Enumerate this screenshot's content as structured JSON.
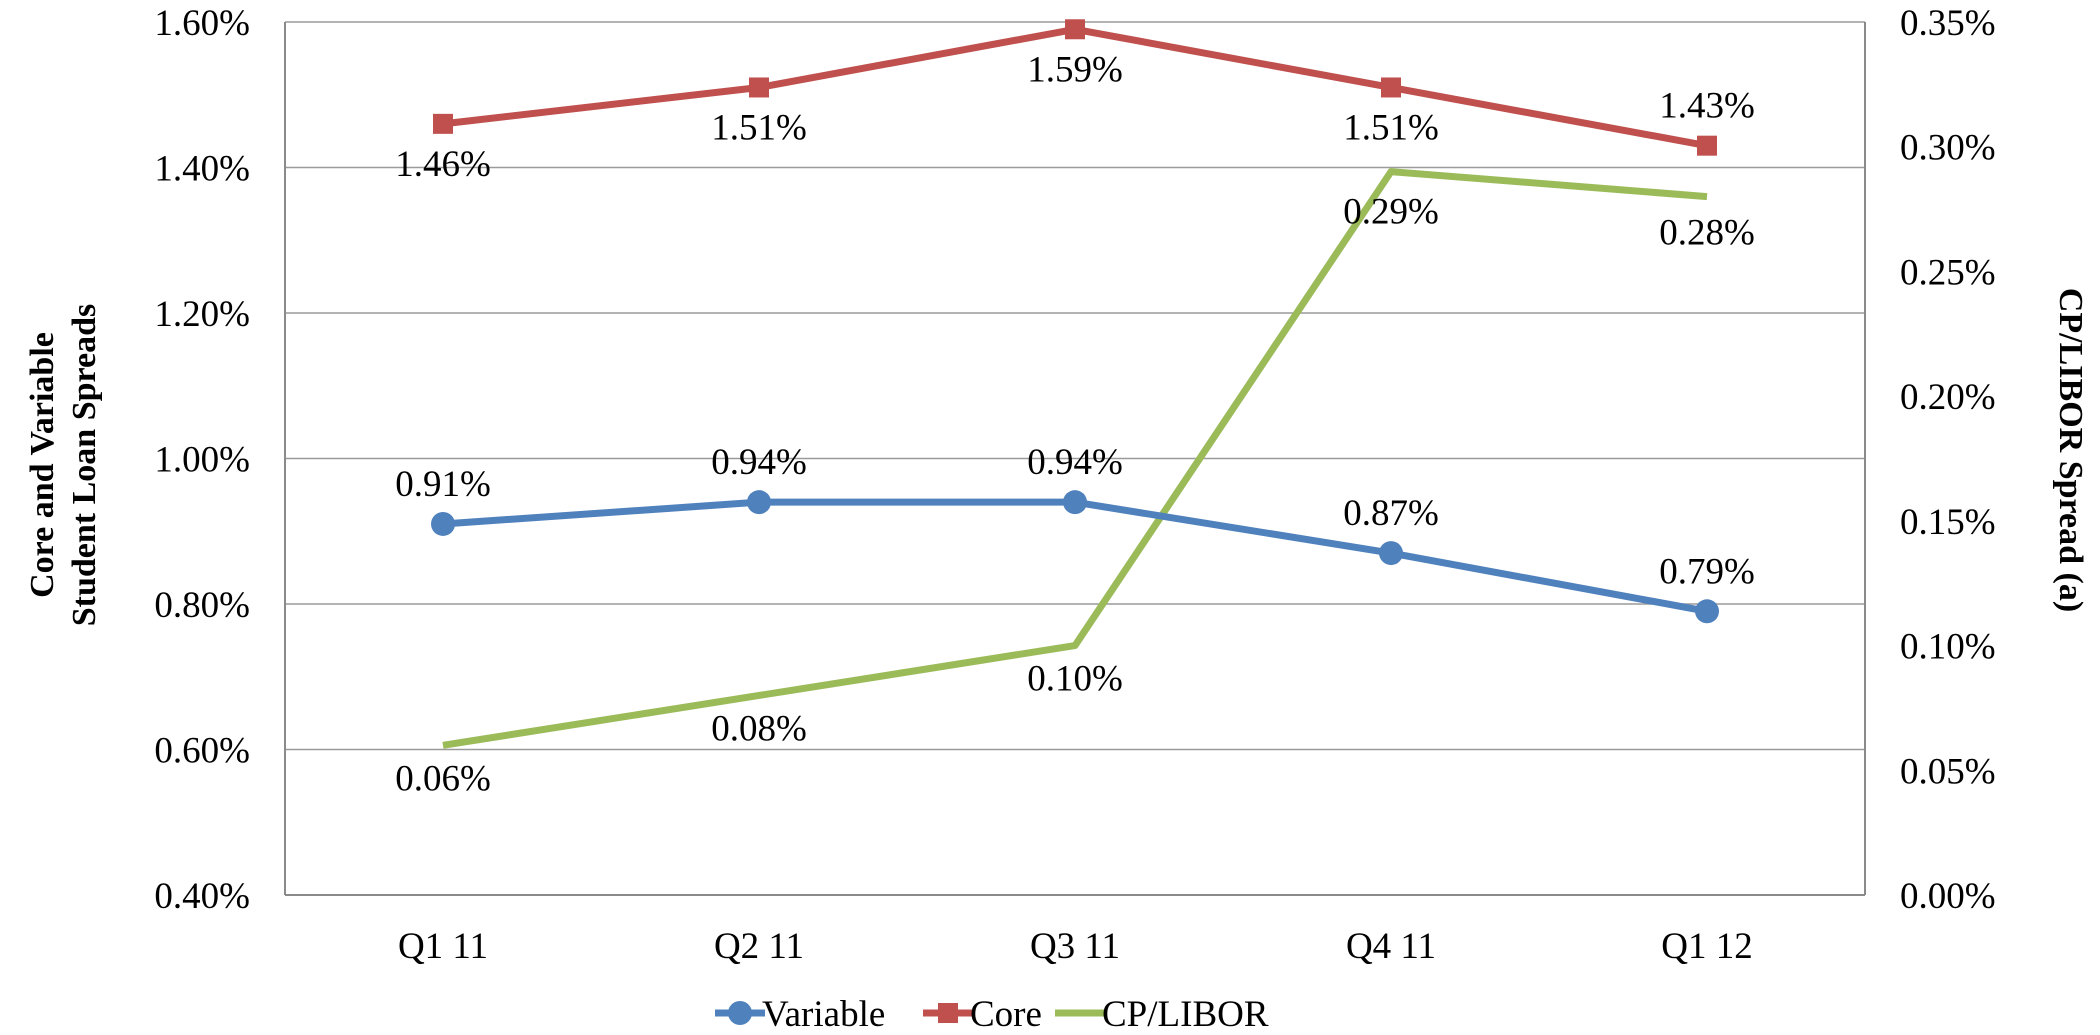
{
  "chart_data": {
    "type": "line",
    "categories": [
      "Q1 11",
      "Q2 11",
      "Q3 11",
      "Q4 11",
      "Q1 12"
    ],
    "y_left": {
      "label_lines": [
        "Core and Variable",
        "Student Loan Spreads"
      ],
      "ylim": [
        0.4,
        1.6
      ],
      "ticks": [
        "0.40%",
        "0.60%",
        "0.80%",
        "1.00%",
        "1.20%",
        "1.40%",
        "1.60%"
      ]
    },
    "y_right": {
      "label": "CP/LIBOR Spread (a)",
      "ylim": [
        0.0,
        0.35
      ],
      "ticks": [
        "0.00%",
        "0.05%",
        "0.10%",
        "0.15%",
        "0.20%",
        "0.25%",
        "0.30%",
        "0.35%"
      ]
    },
    "grid": "horizontal",
    "legend_position": "bottom",
    "series": [
      {
        "name": "Variable",
        "axis": "left",
        "values": [
          0.91,
          0.94,
          0.94,
          0.87,
          0.79
        ],
        "labels": [
          "0.91%",
          "0.94%",
          "0.94%",
          "0.87%",
          "0.79%"
        ],
        "color": "#4f81bd",
        "marker": "circle"
      },
      {
        "name": "Core",
        "axis": "left",
        "values": [
          1.46,
          1.51,
          1.59,
          1.51,
          1.43
        ],
        "labels": [
          "1.46%",
          "1.51%",
          "1.59%",
          "1.51%",
          "1.43%"
        ],
        "color": "#c0504d",
        "marker": "square"
      },
      {
        "name": "CP/LIBOR",
        "axis": "right",
        "values": [
          0.06,
          0.08,
          0.1,
          0.29,
          0.28
        ],
        "labels": [
          "0.06%",
          "0.08%",
          "0.10%",
          "0.29%",
          "0.28%"
        ],
        "color": "#9bbb59",
        "marker": "none"
      }
    ]
  }
}
